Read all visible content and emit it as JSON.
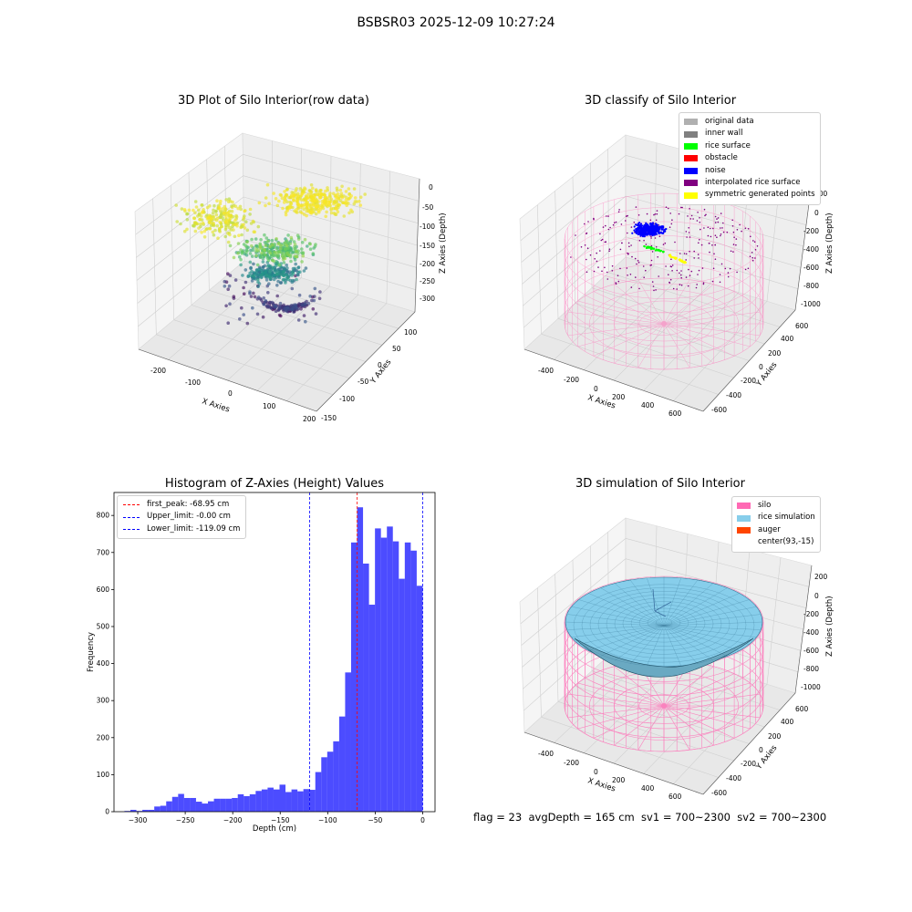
{
  "figure": {
    "suptitle": "BSBSR03 2025-12-09 10:27:24"
  },
  "status_line": "flag = 23  avgDepth = 165 cm  sv1 = 700~2300  sv2 = 700~2300",
  "chart_data": [
    {
      "type": "scatter",
      "title": "3D Plot of Silo Interior(row data)",
      "xlabel": "X Axies",
      "ylabel": "Y Axies",
      "zlabel": "Z Axies (Depth)",
      "xticks": [
        "-200",
        "-100",
        "0",
        "100",
        "200"
      ],
      "yticks": [
        "-150",
        "-100",
        "-50",
        "0",
        "50",
        "100"
      ],
      "zticks": [
        "0",
        "-50",
        "-100",
        "-150",
        "-200",
        "-250",
        "-300"
      ],
      "xlim": [
        -250,
        200
      ],
      "ylim": [
        -150,
        120
      ],
      "zlim": [
        -330,
        10
      ],
      "colormap": "viridis",
      "grid": true
    },
    {
      "type": "scatter",
      "title": "3D classify of Silo Interior",
      "xlabel": "X Axies",
      "ylabel": "Y Axies",
      "zlabel": "Z Axies (Depth)",
      "xticks": [
        "-400",
        "-200",
        "0",
        "200",
        "400",
        "600"
      ],
      "yticks": [
        "-600",
        "-400",
        "-200",
        "0",
        "200",
        "400",
        "600"
      ],
      "zticks": [
        "200",
        "0",
        "-200",
        "-400",
        "-600",
        "-800",
        "-1000"
      ],
      "legend_position": "top-right",
      "legend": [
        {
          "label": "original data",
          "color": "#b0b0b0"
        },
        {
          "label": "inner wall",
          "color": "#808080"
        },
        {
          "label": "rice surface",
          "color": "#00ff00"
        },
        {
          "label": "obstacle",
          "color": "#ff0000"
        },
        {
          "label": "noise",
          "color": "#0000ff"
        },
        {
          "label": "interpolated rice surface",
          "color": "#800080"
        },
        {
          "label": "symmetric generated points",
          "color": "#ffff00"
        }
      ],
      "grid": true
    },
    {
      "type": "bar",
      "title": "Histogram of Z-Axies (Height) Values",
      "xlabel": "Depth (cm)",
      "ylabel": "Frequency",
      "xlim": [
        -325,
        13
      ],
      "ylim": [
        0,
        862
      ],
      "xticks": [
        -300,
        -250,
        -200,
        -150,
        -100,
        -50,
        0
      ],
      "yticks": [
        0,
        100,
        200,
        300,
        400,
        500,
        600,
        700,
        800
      ],
      "bin_start": -314,
      "bin_width": 6.28,
      "values": [
        2,
        5,
        2,
        5,
        5,
        14,
        16,
        28,
        40,
        48,
        37,
        37,
        27,
        22,
        28,
        35,
        35,
        35,
        37,
        47,
        42,
        47,
        56,
        60,
        65,
        60,
        73,
        53,
        60,
        55,
        61,
        59,
        107,
        147,
        162,
        190,
        257,
        376,
        727,
        822,
        670,
        559,
        765,
        740,
        770,
        730,
        629,
        727,
        705,
        610
      ],
      "color": "#0000ff",
      "bar_opacity": 0.7,
      "legend_position": "top-left",
      "reference_lines": [
        {
          "label": "first_peak: -68.95 cm",
          "x": -68.95,
          "color": "#ff0000"
        },
        {
          "label": "Upper_limit: -0.00 cm",
          "x": 0,
          "color": "#0000ff"
        },
        {
          "label": "Lower_limit: -119.09 cm",
          "x": -119.09,
          "color": "#0000ff"
        }
      ]
    },
    {
      "type": "surface",
      "title": "3D simulation of Silo Interior",
      "xlabel": "X Axies",
      "ylabel": "Y Axies",
      "zlabel": "Z Axies (Depth)",
      "xticks": [
        "-400",
        "-200",
        "0",
        "200",
        "400",
        "600"
      ],
      "yticks": [
        "-600",
        "-400",
        "-200",
        "0",
        "200",
        "400",
        "600"
      ],
      "zticks": [
        "200",
        "0",
        "-200",
        "-400",
        "-600",
        "-800",
        "-1000"
      ],
      "legend_position": "top-right",
      "legend": [
        {
          "label": "silo",
          "color": "#ff69b4"
        },
        {
          "label": "rice simulation",
          "color": "#87ceeb"
        },
        {
          "label": "auger",
          "color": "#ff4500"
        },
        {
          "label": "center(93,-15)",
          "color": "none"
        }
      ],
      "grid": true
    }
  ]
}
